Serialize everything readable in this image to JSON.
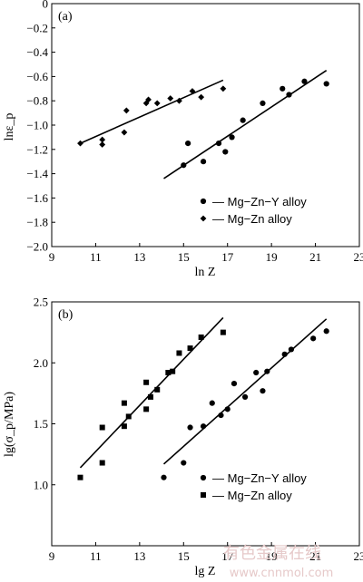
{
  "chart_data": [
    {
      "type": "scatter",
      "panel_label": "(a)",
      "title": "",
      "xlabel": "ln Z",
      "ylabel": "lnε_p",
      "xlim": [
        9,
        23
      ],
      "ylim": [
        -2.0,
        0
      ],
      "xticks": [
        9,
        11,
        13,
        15,
        17,
        19,
        21,
        23
      ],
      "yticks": [
        0,
        -0.2,
        -0.4,
        -0.6,
        -0.8,
        -1.0,
        -1.2,
        -1.4,
        -1.6,
        -1.8,
        -2.0
      ],
      "ytick_labels": [
        "0",
        "−0.2",
        "−0.4",
        "−0.6",
        "−0.8",
        "−1.0",
        "−1.2",
        "−1.4",
        "−1.6",
        "−1.8",
        "−2.0"
      ],
      "grid": false,
      "legend_position": "bottom-right",
      "series": [
        {
          "name": "Mg−Zn−Y alloy",
          "marker": "circle",
          "points": [
            [
              15.0,
              -1.33
            ],
            [
              15.2,
              -1.15
            ],
            [
              15.9,
              -1.3
            ],
            [
              16.6,
              -1.15
            ],
            [
              16.9,
              -1.22
            ],
            [
              17.2,
              -1.1
            ],
            [
              17.7,
              -0.96
            ],
            [
              18.6,
              -0.82
            ],
            [
              19.5,
              -0.7
            ],
            [
              19.8,
              -0.75
            ],
            [
              20.5,
              -0.64
            ],
            [
              21.5,
              -0.66
            ]
          ],
          "fit": [
            [
              14.1,
              -1.44
            ],
            [
              21.5,
              -0.55
            ]
          ]
        },
        {
          "name": "Mg−Zn alloy",
          "marker": "diamond",
          "points": [
            [
              10.3,
              -1.15
            ],
            [
              11.3,
              -1.12
            ],
            [
              11.3,
              -1.16
            ],
            [
              12.3,
              -1.06
            ],
            [
              12.4,
              -0.88
            ],
            [
              13.3,
              -0.82
            ],
            [
              13.4,
              -0.79
            ],
            [
              13.8,
              -0.82
            ],
            [
              14.4,
              -0.78
            ],
            [
              14.8,
              -0.8
            ],
            [
              15.4,
              -0.72
            ],
            [
              15.8,
              -0.77
            ],
            [
              16.8,
              -0.7
            ]
          ],
          "fit": [
            [
              10.3,
              -1.15
            ],
            [
              16.8,
              -0.63
            ]
          ]
        }
      ]
    },
    {
      "type": "scatter",
      "panel_label": "(b)",
      "title": "",
      "xlabel": "lg Z",
      "ylabel": "lg(σ_p/MPa)",
      "xlim": [
        9,
        23
      ],
      "ylim": [
        0.5,
        2.5
      ],
      "xticks": [
        9,
        11,
        13,
        15,
        17,
        19,
        21,
        23
      ],
      "yticks": [
        1.0,
        1.5,
        2.0,
        2.5
      ],
      "ytick_labels": [
        "1.0",
        "1.5",
        "2.0",
        "2.5"
      ],
      "grid": false,
      "legend_position": "bottom-right",
      "series": [
        {
          "name": "Mg−Zn−Y alloy",
          "marker": "circle",
          "points": [
            [
              14.1,
              1.06
            ],
            [
              15.0,
              1.18
            ],
            [
              15.3,
              1.47
            ],
            [
              15.9,
              1.48
            ],
            [
              16.3,
              1.67
            ],
            [
              16.7,
              1.57
            ],
            [
              17.0,
              1.62
            ],
            [
              17.3,
              1.83
            ],
            [
              17.8,
              1.72
            ],
            [
              18.3,
              1.92
            ],
            [
              18.6,
              1.77
            ],
            [
              18.8,
              1.93
            ],
            [
              19.6,
              2.07
            ],
            [
              19.9,
              2.11
            ],
            [
              20.9,
              2.2
            ],
            [
              21.5,
              2.26
            ]
          ],
          "fit": [
            [
              14.1,
              1.17
            ],
            [
              21.5,
              2.36
            ]
          ]
        },
        {
          "name": "Mg−Zn alloy",
          "marker": "square",
          "points": [
            [
              10.3,
              1.06
            ],
            [
              11.3,
              1.47
            ],
            [
              11.3,
              1.18
            ],
            [
              12.3,
              1.67
            ],
            [
              12.3,
              1.48
            ],
            [
              12.5,
              1.56
            ],
            [
              13.3,
              1.84
            ],
            [
              13.3,
              1.62
            ],
            [
              13.5,
              1.72
            ],
            [
              13.8,
              1.78
            ],
            [
              14.3,
              1.92
            ],
            [
              14.5,
              1.93
            ],
            [
              14.8,
              2.08
            ],
            [
              15.3,
              2.12
            ],
            [
              15.8,
              2.21
            ],
            [
              16.8,
              2.25
            ]
          ],
          "fit": [
            [
              10.3,
              1.14
            ],
            [
              16.8,
              2.37
            ]
          ]
        }
      ]
    }
  ],
  "watermark": {
    "line1": "有色金属在线",
    "line2": "www.cnnmol.com"
  }
}
